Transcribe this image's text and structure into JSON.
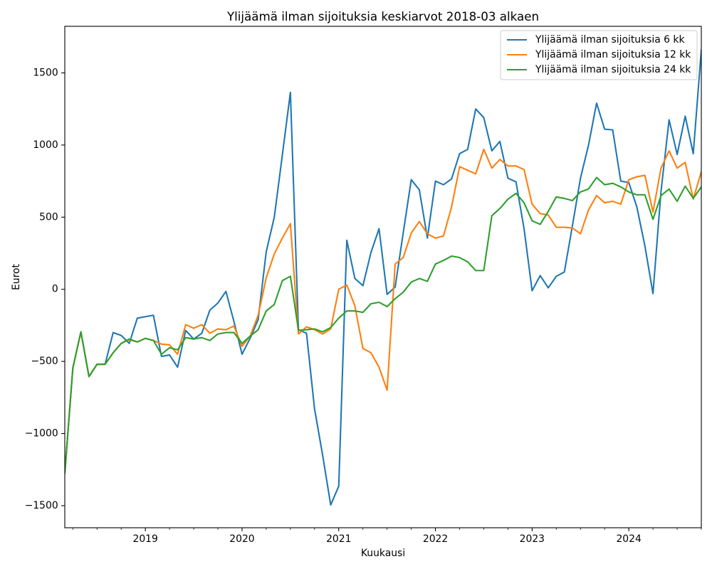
{
  "chart_data": {
    "type": "line",
    "title": "Ylijäämä ilman sijoituksia keskiarvot 2018-03 alkaen",
    "xlabel": "Kuukausi",
    "ylabel": "Eurot",
    "xlim": [
      "2018-03",
      "2024-10"
    ],
    "ylim": [
      -1653,
      1823
    ],
    "grid": false,
    "legend_position": "upper right",
    "x_tick_labels": [
      "2019",
      "2020",
      "2021",
      "2022",
      "2023",
      "2024"
    ],
    "y_tick_labels": [
      "−1500",
      "−1000",
      "−500",
      "0",
      "500",
      "1000",
      "1500"
    ],
    "x": [
      "2018-03",
      "2018-04",
      "2018-05",
      "2018-06",
      "2018-07",
      "2018-08",
      "2018-09",
      "2018-10",
      "2018-11",
      "2018-12",
      "2019-01",
      "2019-02",
      "2019-03",
      "2019-04",
      "2019-05",
      "2019-06",
      "2019-07",
      "2019-08",
      "2019-09",
      "2019-10",
      "2019-11",
      "2019-12",
      "2020-01",
      "2020-02",
      "2020-03",
      "2020-04",
      "2020-05",
      "2020-06",
      "2020-07",
      "2020-08",
      "2020-09",
      "2020-10",
      "2020-11",
      "2020-12",
      "2021-01",
      "2021-02",
      "2021-03",
      "2021-04",
      "2021-05",
      "2021-06",
      "2021-07",
      "2021-08",
      "2021-09",
      "2021-10",
      "2021-11",
      "2021-12",
      "2022-01",
      "2022-02",
      "2022-03",
      "2022-04",
      "2022-05",
      "2022-06",
      "2022-07",
      "2022-08",
      "2022-09",
      "2022-10",
      "2022-11",
      "2022-12",
      "2023-01",
      "2023-02",
      "2023-03",
      "2023-04",
      "2023-05",
      "2023-06",
      "2023-07",
      "2023-08",
      "2023-09",
      "2023-10",
      "2023-11",
      "2023-12",
      "2024-01",
      "2024-02",
      "2024-03",
      "2024-04",
      "2024-05",
      "2024-06",
      "2024-07",
      "2024-08",
      "2024-09",
      "2024-10"
    ],
    "series": [
      {
        "name": "Ylijäämä ilman sijoituksia 6 kk",
        "color": "#1f77b4",
        "values": [
          -1275,
          -545,
          -295,
          -605,
          -520,
          -520,
          -300,
          -320,
          -375,
          -200,
          -190,
          -180,
          -465,
          -455,
          -540,
          -285,
          -345,
          -305,
          -145,
          -95,
          -15,
          -225,
          -450,
          -340,
          -210,
          260,
          500,
          930,
          1365,
          -280,
          -305,
          -830,
          -1150,
          -1495,
          -1365,
          340,
          75,
          25,
          255,
          420,
          -35,
          15,
          390,
          760,
          690,
          355,
          750,
          725,
          765,
          940,
          970,
          1250,
          1190,
          960,
          1025,
          770,
          745,
          420,
          -10,
          95,
          10,
          90,
          120,
          440,
          770,
          1000,
          1290,
          1110,
          1105,
          750,
          740,
          570,
          300,
          -30,
          680,
          1175,
          935,
          1200,
          940,
          1660
        ]
      },
      {
        "name": "Ylijäämä ilman sijoituksia 12 kk",
        "color": "#ff7f0e",
        "values": [
          -1275,
          -545,
          -295,
          -605,
          -520,
          -520,
          -440,
          -375,
          -350,
          -365,
          -340,
          -355,
          -380,
          -385,
          -450,
          -245,
          -270,
          -245,
          -305,
          -275,
          -280,
          -255,
          -395,
          -325,
          -180,
          80,
          245,
          355,
          455,
          -310,
          -260,
          -280,
          -310,
          -275,
          0,
          30,
          -115,
          -410,
          -440,
          -540,
          -700,
          175,
          220,
          390,
          470,
          385,
          355,
          370,
          570,
          850,
          825,
          800,
          970,
          840,
          900,
          855,
          855,
          830,
          590,
          525,
          515,
          430,
          430,
          425,
          385,
          550,
          650,
          600,
          610,
          590,
          760,
          780,
          790,
          535,
          840,
          960,
          840,
          880,
          625,
          815
        ]
      },
      {
        "name": "Ylijäämä ilman sijoituksia 24 kk",
        "color": "#2ca02c",
        "values": [
          -1275,
          -545,
          -295,
          -605,
          -520,
          -520,
          -440,
          -375,
          -345,
          -365,
          -340,
          -355,
          -450,
          -405,
          -420,
          -335,
          -345,
          -335,
          -355,
          -310,
          -300,
          -300,
          -375,
          -325,
          -280,
          -150,
          -105,
          60,
          90,
          -285,
          -280,
          -275,
          -295,
          -265,
          -200,
          -150,
          -150,
          -160,
          -100,
          -90,
          -120,
          -65,
          -20,
          50,
          75,
          55,
          175,
          200,
          230,
          220,
          190,
          130,
          130,
          510,
          560,
          625,
          665,
          600,
          475,
          450,
          540,
          640,
          630,
          615,
          675,
          695,
          775,
          725,
          735,
          710,
          675,
          655,
          655,
          485,
          650,
          695,
          610,
          715,
          630,
          710
        ]
      }
    ]
  }
}
